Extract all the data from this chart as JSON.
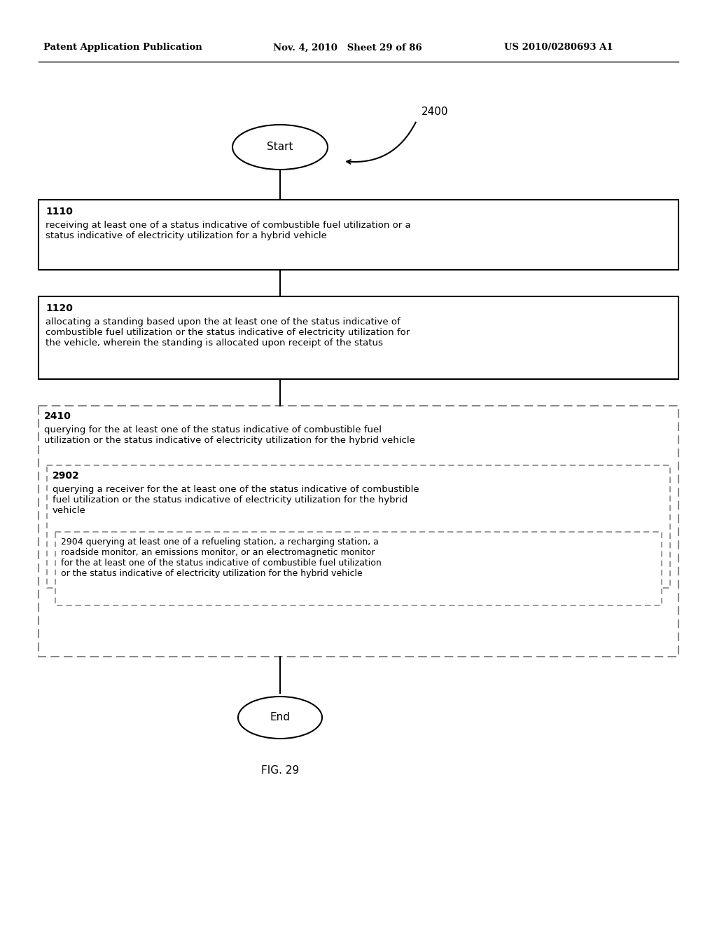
{
  "header_left": "Patent Application Publication",
  "header_mid": "Nov. 4, 2010   Sheet 29 of 86",
  "header_right": "US 2010/0280693 A1",
  "figure_label": "FIG. 29",
  "diagram_label": "2400",
  "start_label": "Start",
  "end_label": "End",
  "box1_id": "1110",
  "box1_text": "receiving at least one of a status indicative of combustible fuel utilization or a\nstatus indicative of electricity utilization for a hybrid vehicle",
  "box2_id": "1120",
  "box2_text": "allocating a standing based upon the at least one of the status indicative of\ncombustible fuel utilization or the status indicative of electricity utilization for\nthe vehicle, wherein the standing is allocated upon receipt of the status",
  "box3_id": "2410",
  "box3_text": "querying for the at least one of the status indicative of combustible fuel\nutilization or the status indicative of electricity utilization for the hybrid vehicle",
  "box4_id": "2902",
  "box4_text": "querying a receiver for the at least one of the status indicative of combustible\nfuel utilization or the status indicative of electricity utilization for the hybrid\nvehicle",
  "box5_id": "2904",
  "box5_text": "2904 querying at least one of a refueling station, a recharging station, a\nroadside monitor, an emissions monitor, or an electromagnetic monitor\nfor the at least one of the status indicative of combustible fuel utilization\nor the status indicative of electricity utilization for the hybrid vehicle",
  "bg_color": "#ffffff",
  "text_color": "#000000",
  "box_edge_color": "#000000",
  "dashed_color": "#888888",
  "header_line_color": "#000000"
}
